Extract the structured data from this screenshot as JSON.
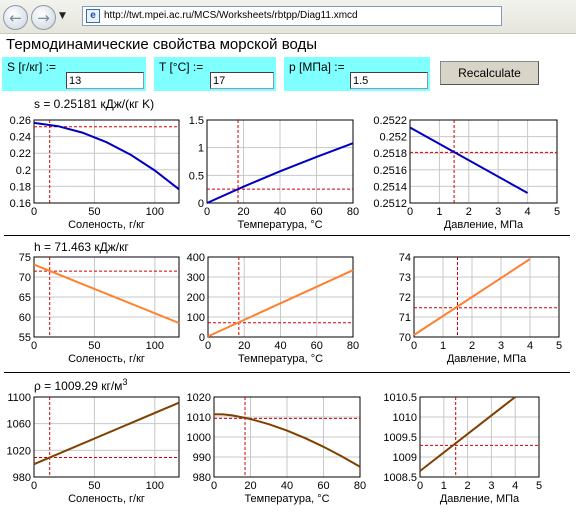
{
  "browser": {
    "url": "http://twt.mpei.ac.ru/MCS/Worksheets/rbtpp/Diag11.xmcd",
    "back_glyph": "←",
    "forward_glyph": "→",
    "history_glyph": "▼",
    "page_icon_glyph": "e"
  },
  "page": {
    "title": "Термодинамические свойства морской воды"
  },
  "inputs": {
    "salinity": {
      "label": "S [г/кг]  :=",
      "value": "13"
    },
    "temperature": {
      "label": "T [°C]  :=",
      "value": "17"
    },
    "pressure": {
      "label": "p [МПа]  :=",
      "value": "1.5"
    },
    "recalc_label": "Recalculate"
  },
  "results": [
    {
      "key": "s",
      "text": "s = 0.25181 кДж/(кг K)"
    },
    {
      "key": "h",
      "text": "h = 71.463 кДж/кг"
    },
    {
      "key": "rho",
      "text": "ρ = 1009.29 кг/м",
      "sup": "3"
    }
  ],
  "chart_data": [
    {
      "type": "line",
      "name": "entropy-vs-salinity",
      "xlabel": "Соленость, г/кг",
      "xlim": [
        0,
        120
      ],
      "ylim": [
        0.16,
        0.26
      ],
      "xticks": [
        "0",
        "50",
        "100"
      ],
      "yticks": [
        "0.16",
        "0.18",
        "0.2",
        "0.22",
        "0.24",
        "0.26"
      ],
      "x": [
        0,
        20,
        40,
        60,
        80,
        100,
        120
      ],
      "y": [
        0.2565,
        0.2525,
        0.2448,
        0.2333,
        0.2181,
        0.1992,
        0.1765
      ],
      "marker": {
        "x": 13,
        "y": 0.2518
      },
      "color": "#0000c0",
      "grid": true
    },
    {
      "type": "line",
      "name": "entropy-vs-temperature",
      "xlabel": "Температура, °C",
      "xlim": [
        0,
        80
      ],
      "ylim": [
        0,
        1.5
      ],
      "xticks": [
        "0",
        "20",
        "40",
        "60",
        "80"
      ],
      "yticks": [
        "0",
        "0.5",
        "1",
        "1.5"
      ],
      "x": [
        0,
        20,
        40,
        60,
        80
      ],
      "y": [
        0.0,
        0.295,
        0.572,
        0.833,
        1.08
      ],
      "marker": {
        "x": 17,
        "y": 0.2518
      },
      "color": "#0000c0",
      "grid": true
    },
    {
      "type": "line",
      "name": "entropy-vs-pressure",
      "xlabel": "Давление, МПа",
      "xlim": [
        0,
        5
      ],
      "ylim": [
        0.2512,
        0.2522
      ],
      "xticks": [
        "0",
        "1",
        "2",
        "3",
        "4",
        "5"
      ],
      "yticks": [
        "0.2512",
        "0.2514",
        "0.2516",
        "0.2518",
        "0.252",
        "0.2522"
      ],
      "x": [
        0,
        4
      ],
      "y": [
        0.25211,
        0.25132
      ],
      "marker": {
        "x": 1.5,
        "y": 0.25181
      },
      "color": "#0000c0",
      "grid": true
    },
    {
      "type": "line",
      "name": "enthalpy-vs-salinity",
      "xlabel": "Соленость, г/кг",
      "xlim": [
        0,
        120
      ],
      "ylim": [
        55,
        75
      ],
      "xticks": [
        "0",
        "50",
        "100"
      ],
      "yticks": [
        "55",
        "60",
        "65",
        "70",
        "75"
      ],
      "x": [
        0,
        120
      ],
      "y": [
        73.1,
        58.5
      ],
      "marker": {
        "x": 13,
        "y": 71.463
      },
      "color": "#ff8030",
      "grid": true
    },
    {
      "type": "line",
      "name": "enthalpy-vs-temperature",
      "xlabel": "Температура, °C",
      "xlim": [
        0,
        80
      ],
      "ylim": [
        0,
        400
      ],
      "xticks": [
        "0",
        "20",
        "40",
        "60",
        "80"
      ],
      "yticks": [
        "0",
        "100",
        "200",
        "300",
        "400"
      ],
      "x": [
        0,
        80
      ],
      "y": [
        3,
        334
      ],
      "marker": {
        "x": 17,
        "y": 71.463
      },
      "color": "#ff8030",
      "grid": true
    },
    {
      "type": "line",
      "name": "enthalpy-vs-pressure",
      "xlabel": "Давление, МПа",
      "xlim": [
        0,
        5
      ],
      "ylim": [
        70,
        74
      ],
      "xticks": [
        "0",
        "1",
        "2",
        "3",
        "4",
        "5"
      ],
      "yticks": [
        "70",
        "71",
        "72",
        "73",
        "74"
      ],
      "x": [
        0,
        4
      ],
      "y": [
        70.1,
        73.9
      ],
      "marker": {
        "x": 1.5,
        "y": 71.463
      },
      "color": "#ff8030",
      "grid": true
    },
    {
      "type": "line",
      "name": "density-vs-salinity",
      "xlabel": "Соленость, г/кг",
      "xlim": [
        0,
        120
      ],
      "ylim": [
        980,
        1100
      ],
      "xticks": [
        "0",
        "50",
        "100"
      ],
      "yticks": [
        "980",
        "1020",
        "1060",
        "1100"
      ],
      "x": [
        0,
        120
      ],
      "y": [
        999.2,
        1091.5
      ],
      "marker": {
        "x": 13,
        "y": 1009.29
      },
      "color": "#804000",
      "grid": true
    },
    {
      "type": "line",
      "name": "density-vs-temperature",
      "xlabel": "Температура, °C",
      "xlim": [
        0,
        80
      ],
      "ylim": [
        980,
        1020
      ],
      "xticks": [
        "0",
        "20",
        "40",
        "60",
        "80"
      ],
      "yticks": [
        "980",
        "990",
        "1000",
        "1010",
        "1020"
      ],
      "x": [
        0,
        5,
        10,
        20,
        30,
        40,
        50,
        60,
        70,
        80
      ],
      "y": [
        1011.4,
        1011.3,
        1010.8,
        1009.0,
        1006.4,
        1003.2,
        999.4,
        995.1,
        990.3,
        985.1
      ],
      "marker": {
        "x": 17,
        "y": 1009.29
      },
      "color": "#804000",
      "grid": true
    },
    {
      "type": "line",
      "name": "density-vs-pressure",
      "xlabel": "Давление, МПа",
      "xlim": [
        0,
        5
      ],
      "ylim": [
        1008.5,
        1010.5
      ],
      "xticks": [
        "0",
        "1",
        "2",
        "3",
        "4",
        "5"
      ],
      "yticks": [
        "1008.5",
        "1009",
        "1009.5",
        "1010",
        "1010.5"
      ],
      "x": [
        0,
        4
      ],
      "y": [
        1008.65,
        1010.5
      ],
      "marker": {
        "x": 1.5,
        "y": 1009.29
      },
      "color": "#804000",
      "grid": true
    }
  ]
}
